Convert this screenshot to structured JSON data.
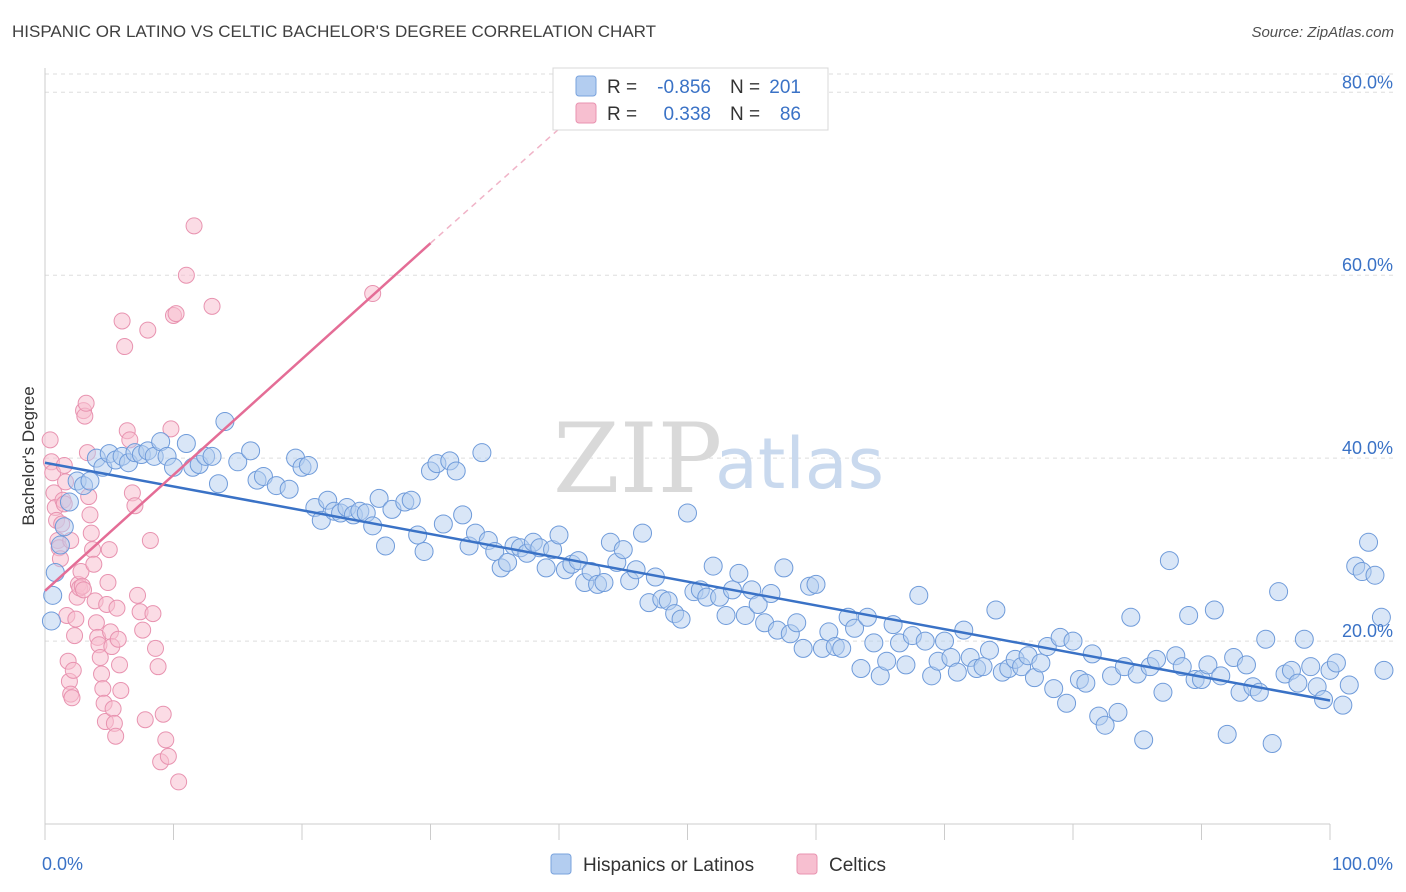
{
  "title": "HISPANIC OR LATINO VS CELTIC BACHELOR'S DEGREE CORRELATION CHART",
  "source": "Source: ZipAtlas.com",
  "watermark": {
    "zip": "ZIP",
    "atlas": "atlas"
  },
  "legend_stats": [
    {
      "r_label": "R =",
      "r_value": "-0.856",
      "n_label": "N =",
      "n_value": "201"
    },
    {
      "r_label": "R =",
      "r_value": "0.338",
      "n_label": "N =",
      "n_value": "86"
    }
  ],
  "colors": {
    "blue": "#3a72c6",
    "blue_fill": "#b3cdf0",
    "pink": "#e46d96",
    "pink_fill": "#f7bfd0",
    "grid": "#dddddd"
  },
  "chart_data": {
    "type": "scatter",
    "ylabel": "Bachelor's Degree",
    "x_tick_labels": [
      "0.0%",
      "100.0%"
    ],
    "y_tick_labels": [
      "20.0%",
      "40.0%",
      "60.0%",
      "80.0%"
    ],
    "y_ticks": [
      20,
      40,
      60,
      80
    ],
    "xlim": [
      0,
      100
    ],
    "ylim": [
      0,
      82
    ],
    "grid": true,
    "legend_position": "bottom",
    "series": [
      {
        "name": "Hispanics or Latinos",
        "r": -0.856,
        "n": 201,
        "trend": {
          "x0": 0,
          "y0": 39.5,
          "x1": 100,
          "y1": 13.5
        },
        "points": [
          [
            0.5,
            22.2
          ],
          [
            0.6,
            25.0
          ],
          [
            0.8,
            27.5
          ],
          [
            1.2,
            30.5
          ],
          [
            1.5,
            32.5
          ],
          [
            1.9,
            35.2
          ],
          [
            2.5,
            37.5
          ],
          [
            3.0,
            37.0
          ],
          [
            3.5,
            37.5
          ],
          [
            4.0,
            40.0
          ],
          [
            4.5,
            39.0
          ],
          [
            5.0,
            40.5
          ],
          [
            5.5,
            39.8
          ],
          [
            6.0,
            40.2
          ],
          [
            6.5,
            39.5
          ],
          [
            7.0,
            40.6
          ],
          [
            7.5,
            40.4
          ],
          [
            8.0,
            40.8
          ],
          [
            8.5,
            40.2
          ],
          [
            9.0,
            41.8
          ],
          [
            9.5,
            40.2
          ],
          [
            10.0,
            39.0
          ],
          [
            11.0,
            41.6
          ],
          [
            11.5,
            39.0
          ],
          [
            12.0,
            39.3
          ],
          [
            12.5,
            40.2
          ],
          [
            13.0,
            40.2
          ],
          [
            13.5,
            37.2
          ],
          [
            14.0,
            44.0
          ],
          [
            15.0,
            39.6
          ],
          [
            16.0,
            40.8
          ],
          [
            16.5,
            37.6
          ],
          [
            17.0,
            38.0
          ],
          [
            18.0,
            37.0
          ],
          [
            19.0,
            36.6
          ],
          [
            19.5,
            40.0
          ],
          [
            20.0,
            39.0
          ],
          [
            20.5,
            39.2
          ],
          [
            21.0,
            34.6
          ],
          [
            21.5,
            33.2
          ],
          [
            22.0,
            35.4
          ],
          [
            22.5,
            34.2
          ],
          [
            23.0,
            34.0
          ],
          [
            23.5,
            34.6
          ],
          [
            24.0,
            33.8
          ],
          [
            24.5,
            34.2
          ],
          [
            25.0,
            34.0
          ],
          [
            25.5,
            32.6
          ],
          [
            26.0,
            35.6
          ],
          [
            26.5,
            30.4
          ],
          [
            27.0,
            34.4
          ],
          [
            28.0,
            35.2
          ],
          [
            28.5,
            35.4
          ],
          [
            29.0,
            31.6
          ],
          [
            29.5,
            29.8
          ],
          [
            30.0,
            38.6
          ],
          [
            30.5,
            39.4
          ],
          [
            31.0,
            32.8
          ],
          [
            31.5,
            39.7
          ],
          [
            32.0,
            38.6
          ],
          [
            32.5,
            33.8
          ],
          [
            33.0,
            30.4
          ],
          [
            33.5,
            31.8
          ],
          [
            34.0,
            40.6
          ],
          [
            34.5,
            31.0
          ],
          [
            35.0,
            29.8
          ],
          [
            35.5,
            28.0
          ],
          [
            36.0,
            28.6
          ],
          [
            36.5,
            30.4
          ],
          [
            37.0,
            30.2
          ],
          [
            37.5,
            29.6
          ],
          [
            38.0,
            30.8
          ],
          [
            38.5,
            30.2
          ],
          [
            39.0,
            28.0
          ],
          [
            39.5,
            30.0
          ],
          [
            40.0,
            31.6
          ],
          [
            40.5,
            27.8
          ],
          [
            41.0,
            28.4
          ],
          [
            41.5,
            28.8
          ],
          [
            42.0,
            26.4
          ],
          [
            42.5,
            27.6
          ],
          [
            43.0,
            26.2
          ],
          [
            43.5,
            26.4
          ],
          [
            44.0,
            30.8
          ],
          [
            44.5,
            28.6
          ],
          [
            45.0,
            30.0
          ],
          [
            45.5,
            26.6
          ],
          [
            46.0,
            27.8
          ],
          [
            46.5,
            31.8
          ],
          [
            47.0,
            24.2
          ],
          [
            47.5,
            27.0
          ],
          [
            48.0,
            24.6
          ],
          [
            48.5,
            24.4
          ],
          [
            49.0,
            23.0
          ],
          [
            49.5,
            22.4
          ],
          [
            50.0,
            34.0
          ],
          [
            50.5,
            25.4
          ],
          [
            51.0,
            25.6
          ],
          [
            51.5,
            24.8
          ],
          [
            52.0,
            28.2
          ],
          [
            52.5,
            24.8
          ],
          [
            53.0,
            22.8
          ],
          [
            53.5,
            25.6
          ],
          [
            54.0,
            27.4
          ],
          [
            54.5,
            22.8
          ],
          [
            55.0,
            25.6
          ],
          [
            55.5,
            24.0
          ],
          [
            56.0,
            22.0
          ],
          [
            56.5,
            25.2
          ],
          [
            57.0,
            21.2
          ],
          [
            57.5,
            28.0
          ],
          [
            58.0,
            20.8
          ],
          [
            58.5,
            22.0
          ],
          [
            59.0,
            19.2
          ],
          [
            59.5,
            26.0
          ],
          [
            60.0,
            26.2
          ],
          [
            60.5,
            19.2
          ],
          [
            61.0,
            21.0
          ],
          [
            61.5,
            19.4
          ],
          [
            62.0,
            19.2
          ],
          [
            62.5,
            22.6
          ],
          [
            63.0,
            21.4
          ],
          [
            63.5,
            17.0
          ],
          [
            64.0,
            22.6
          ],
          [
            64.5,
            19.8
          ],
          [
            65.0,
            16.2
          ],
          [
            65.5,
            17.8
          ],
          [
            66.0,
            21.8
          ],
          [
            66.5,
            19.8
          ],
          [
            67.0,
            17.4
          ],
          [
            67.5,
            20.6
          ],
          [
            68.0,
            25.0
          ],
          [
            68.5,
            20.0
          ],
          [
            69.0,
            16.2
          ],
          [
            69.5,
            17.8
          ],
          [
            70.0,
            20.0
          ],
          [
            70.5,
            18.2
          ],
          [
            71.0,
            16.6
          ],
          [
            71.5,
            21.2
          ],
          [
            72.0,
            18.2
          ],
          [
            72.5,
            17.0
          ],
          [
            73.0,
            17.2
          ],
          [
            73.5,
            19.0
          ],
          [
            74.0,
            23.4
          ],
          [
            74.5,
            16.6
          ],
          [
            75.0,
            17.0
          ],
          [
            75.5,
            18.0
          ],
          [
            76.0,
            17.2
          ],
          [
            76.5,
            18.4
          ],
          [
            77.0,
            16.0
          ],
          [
            77.5,
            17.6
          ],
          [
            78.0,
            19.4
          ],
          [
            78.5,
            14.8
          ],
          [
            79.0,
            20.4
          ],
          [
            79.5,
            13.2
          ],
          [
            80.0,
            20.0
          ],
          [
            80.5,
            15.8
          ],
          [
            81.0,
            15.4
          ],
          [
            81.5,
            18.6
          ],
          [
            82.0,
            11.8
          ],
          [
            82.5,
            10.8
          ],
          [
            83.0,
            16.2
          ],
          [
            83.5,
            12.2
          ],
          [
            84.0,
            17.2
          ],
          [
            84.5,
            22.6
          ],
          [
            85.0,
            16.4
          ],
          [
            85.5,
            9.2
          ],
          [
            86.0,
            17.2
          ],
          [
            86.5,
            18.0
          ],
          [
            87.0,
            14.4
          ],
          [
            87.5,
            28.8
          ],
          [
            88.0,
            18.4
          ],
          [
            88.5,
            17.2
          ],
          [
            89.0,
            22.8
          ],
          [
            89.5,
            15.8
          ],
          [
            90.0,
            15.8
          ],
          [
            90.5,
            17.4
          ],
          [
            91.0,
            23.4
          ],
          [
            91.5,
            16.2
          ],
          [
            92.0,
            9.8
          ],
          [
            92.5,
            18.2
          ],
          [
            93.0,
            14.4
          ],
          [
            93.5,
            17.4
          ],
          [
            94.0,
            15.0
          ],
          [
            94.5,
            14.4
          ],
          [
            95.0,
            20.2
          ],
          [
            95.5,
            8.8
          ],
          [
            96.0,
            25.4
          ],
          [
            96.5,
            16.4
          ],
          [
            97.0,
            16.8
          ],
          [
            97.5,
            15.4
          ],
          [
            98.0,
            20.2
          ],
          [
            98.5,
            17.2
          ],
          [
            99.0,
            15.0
          ],
          [
            99.5,
            13.6
          ],
          [
            100.0,
            16.8
          ],
          [
            100.5,
            17.6
          ],
          [
            101.0,
            13.0
          ],
          [
            101.5,
            15.2
          ],
          [
            102.0,
            28.2
          ],
          [
            102.5,
            27.6
          ],
          [
            103.0,
            30.8
          ],
          [
            103.5,
            27.2
          ],
          [
            104.0,
            22.6
          ],
          [
            104.2,
            16.8
          ]
        ]
      },
      {
        "name": "Celtics",
        "r": 0.338,
        "n": 86,
        "trend": {
          "x0": 0,
          "y0": 25.5,
          "x1": 30,
          "y1": 63.5
        },
        "trend_dashed": {
          "x0": 30,
          "y0": 63.5,
          "x1": 40,
          "y1": 76.0
        },
        "points": [
          [
            0.4,
            42.0
          ],
          [
            0.5,
            39.6
          ],
          [
            0.6,
            38.4
          ],
          [
            0.7,
            36.2
          ],
          [
            0.8,
            34.6
          ],
          [
            0.9,
            33.2
          ],
          [
            1.0,
            31.0
          ],
          [
            1.1,
            30.2
          ],
          [
            1.2,
            29.0
          ],
          [
            1.3,
            32.8
          ],
          [
            1.4,
            35.4
          ],
          [
            1.5,
            39.2
          ],
          [
            1.6,
            37.4
          ],
          [
            1.7,
            22.8
          ],
          [
            1.8,
            17.8
          ],
          [
            1.9,
            15.6
          ],
          [
            2.0,
            14.2
          ],
          [
            2.1,
            13.8
          ],
          [
            2.2,
            16.8
          ],
          [
            2.3,
            20.6
          ],
          [
            2.4,
            22.4
          ],
          [
            2.5,
            24.8
          ],
          [
            2.6,
            26.2
          ],
          [
            2.7,
            25.8
          ],
          [
            2.8,
            27.6
          ],
          [
            2.9,
            26.0
          ],
          [
            3.0,
            45.2
          ],
          [
            3.1,
            44.6
          ],
          [
            3.2,
            46.0
          ],
          [
            3.3,
            40.6
          ],
          [
            3.4,
            35.8
          ],
          [
            3.5,
            33.8
          ],
          [
            3.6,
            31.8
          ],
          [
            3.7,
            30.0
          ],
          [
            3.8,
            28.4
          ],
          [
            3.9,
            24.4
          ],
          [
            4.0,
            22.0
          ],
          [
            4.1,
            20.4
          ],
          [
            4.2,
            19.6
          ],
          [
            4.3,
            18.2
          ],
          [
            4.4,
            16.4
          ],
          [
            4.5,
            14.8
          ],
          [
            4.6,
            13.2
          ],
          [
            4.7,
            11.2
          ],
          [
            4.8,
            24.0
          ],
          [
            4.9,
            26.4
          ],
          [
            5.0,
            30.0
          ],
          [
            5.1,
            21.0
          ],
          [
            5.2,
            19.4
          ],
          [
            5.3,
            12.6
          ],
          [
            5.4,
            11.0
          ],
          [
            5.5,
            9.6
          ],
          [
            5.6,
            23.6
          ],
          [
            5.7,
            20.2
          ],
          [
            5.8,
            17.4
          ],
          [
            5.9,
            14.6
          ],
          [
            6.0,
            55.0
          ],
          [
            6.2,
            52.2
          ],
          [
            6.4,
            43.0
          ],
          [
            6.6,
            42.0
          ],
          [
            6.8,
            36.2
          ],
          [
            7.0,
            34.8
          ],
          [
            7.2,
            25.0
          ],
          [
            7.4,
            23.2
          ],
          [
            7.6,
            21.2
          ],
          [
            7.8,
            11.4
          ],
          [
            8.0,
            54.0
          ],
          [
            8.2,
            31.0
          ],
          [
            8.4,
            23.0
          ],
          [
            8.6,
            19.2
          ],
          [
            8.8,
            17.2
          ],
          [
            9.0,
            6.8
          ],
          [
            9.2,
            12.0
          ],
          [
            9.4,
            9.2
          ],
          [
            9.6,
            7.4
          ],
          [
            9.8,
            43.2
          ],
          [
            10.0,
            55.6
          ],
          [
            10.2,
            55.8
          ],
          [
            10.4,
            4.6
          ],
          [
            11.0,
            60.0
          ],
          [
            11.6,
            65.4
          ],
          [
            13.0,
            56.6
          ],
          [
            25.5,
            58.0
          ],
          [
            3.0,
            25.6
          ],
          [
            2.0,
            31.0
          ],
          [
            1.5,
            35.0
          ]
        ]
      }
    ]
  }
}
